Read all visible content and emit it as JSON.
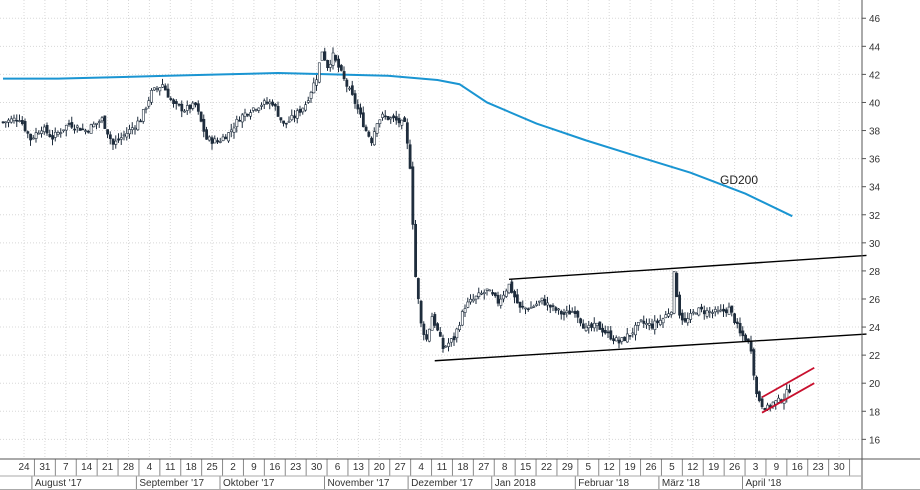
{
  "chart_data": {
    "type": "candlestick",
    "title": "",
    "xlabel": "",
    "ylabel": "",
    "ylim": [
      14.6,
      47.3
    ],
    "y_ticks": [
      16,
      18,
      20,
      22,
      24,
      26,
      28,
      30,
      32,
      34,
      36,
      38,
      40,
      42,
      44,
      46
    ],
    "y_axis_position": "right",
    "grid": true,
    "colors": {
      "up": "#ffffff",
      "down": "#1f2d3d",
      "ma200": "#1a95d2",
      "channel": "#000000",
      "new_channel": "#c8102e",
      "grid": "#d8d8d8"
    },
    "x_day_labels": [
      "24",
      "31",
      "7",
      "14",
      "21",
      "28",
      "4",
      "11",
      "18",
      "25",
      "2",
      "9",
      "16",
      "23",
      "30",
      "6",
      "13",
      "20",
      "27",
      "4",
      "11",
      "18",
      "27",
      "8",
      "15",
      "22",
      "29",
      "5",
      "12",
      "19",
      "26",
      "5",
      "12",
      "19",
      "26",
      "3",
      "9",
      "16",
      "23",
      "30"
    ],
    "x_month_labels": [
      "August '17",
      "September '17",
      "Oktober '17",
      "November '17",
      "Dezember '17",
      "Jan 2018",
      "Februar '18",
      "März '18",
      "April '18"
    ],
    "ma200": {
      "name": "GD200",
      "points": [
        [
          0,
          41.7
        ],
        [
          20,
          41.7
        ],
        [
          40,
          41.8
        ],
        [
          60,
          41.9
        ],
        [
          80,
          42.0
        ],
        [
          100,
          42.1
        ],
        [
          120,
          42.0
        ],
        [
          140,
          41.9
        ],
        [
          158,
          41.6
        ],
        [
          166,
          41.3
        ],
        [
          176,
          40.0
        ],
        [
          194,
          38.5
        ],
        [
          212,
          37.3
        ],
        [
          230,
          36.2
        ],
        [
          250,
          35.0
        ],
        [
          270,
          33.5
        ],
        [
          287,
          31.9
        ]
      ]
    },
    "annotations": [
      {
        "text": "GD200"
      }
    ],
    "trend_lines": [
      {
        "name": "upper-channel",
        "style": "channel",
        "from": [
          184,
          27.4
        ],
        "to": [
          314,
          29.1
        ]
      },
      {
        "name": "lower-channel",
        "style": "channel",
        "from": [
          157,
          21.6
        ],
        "to": [
          314,
          23.5
        ]
      },
      {
        "name": "red-upper",
        "style": "new_channel",
        "from": [
          276,
          19.0
        ],
        "to": [
          295,
          21.1
        ]
      },
      {
        "name": "red-lower",
        "style": "new_channel",
        "from": [
          276,
          17.9
        ],
        "to": [
          295,
          20.0
        ]
      }
    ],
    "close_anchors": [
      [
        0,
        38.6
      ],
      [
        6,
        38.9
      ],
      [
        10,
        37.4
      ],
      [
        14,
        38.2
      ],
      [
        18,
        37.5
      ],
      [
        24,
        38.5
      ],
      [
        30,
        38.0
      ],
      [
        36,
        38.8
      ],
      [
        40,
        37.0
      ],
      [
        46,
        38.0
      ],
      [
        50,
        38.8
      ],
      [
        54,
        40.7
      ],
      [
        58,
        41.3
      ],
      [
        62,
        39.8
      ],
      [
        66,
        39.5
      ],
      [
        70,
        39.8
      ],
      [
        74,
        37.4
      ],
      [
        78,
        37.2
      ],
      [
        82,
        37.8
      ],
      [
        86,
        38.9
      ],
      [
        90,
        39.5
      ],
      [
        94,
        39.9
      ],
      [
        98,
        40.0
      ],
      [
        102,
        38.4
      ],
      [
        106,
        39.0
      ],
      [
        110,
        39.9
      ],
      [
        114,
        41.8
      ],
      [
        116,
        43.7
      ],
      [
        118,
        42.6
      ],
      [
        120,
        43.3
      ],
      [
        122,
        42.5
      ],
      [
        124,
        41.6
      ],
      [
        128,
        40.0
      ],
      [
        132,
        38.0
      ],
      [
        134,
        37.3
      ],
      [
        136,
        38.7
      ],
      [
        138,
        39.0
      ],
      [
        142,
        38.8
      ],
      [
        146,
        38.4
      ],
      [
        148,
        35.5
      ],
      [
        149,
        31.5
      ],
      [
        150,
        27.6
      ],
      [
        152,
        24.2
      ],
      [
        154,
        23.1
      ],
      [
        156,
        24.8
      ],
      [
        158,
        23.7
      ],
      [
        160,
        22.5
      ],
      [
        164,
        23.2
      ],
      [
        168,
        25.5
      ],
      [
        172,
        26.1
      ],
      [
        176,
        26.6
      ],
      [
        180,
        25.8
      ],
      [
        184,
        27.0
      ],
      [
        188,
        25.3
      ],
      [
        192,
        25.4
      ],
      [
        196,
        25.9
      ],
      [
        200,
        25.3
      ],
      [
        204,
        24.9
      ],
      [
        208,
        25.2
      ],
      [
        212,
        23.8
      ],
      [
        216,
        24.1
      ],
      [
        220,
        23.5
      ],
      [
        224,
        22.9
      ],
      [
        228,
        23.5
      ],
      [
        232,
        24.3
      ],
      [
        236,
        24.1
      ],
      [
        240,
        24.6
      ],
      [
        243,
        25.3
      ],
      [
        244,
        27.7
      ],
      [
        246,
        25.0
      ],
      [
        248,
        24.3
      ],
      [
        252,
        25.2
      ],
      [
        256,
        25.1
      ],
      [
        260,
        25.0
      ],
      [
        264,
        25.3
      ],
      [
        266,
        24.5
      ],
      [
        268,
        23.5
      ],
      [
        270,
        23.2
      ],
      [
        272,
        22.5
      ],
      [
        273,
        20.8
      ],
      [
        274,
        19.2
      ],
      [
        276,
        18.5
      ],
      [
        278,
        18.2
      ],
      [
        280,
        18.6
      ],
      [
        282,
        18.7
      ],
      [
        284,
        19.0
      ],
      [
        286,
        19.6
      ]
    ]
  }
}
